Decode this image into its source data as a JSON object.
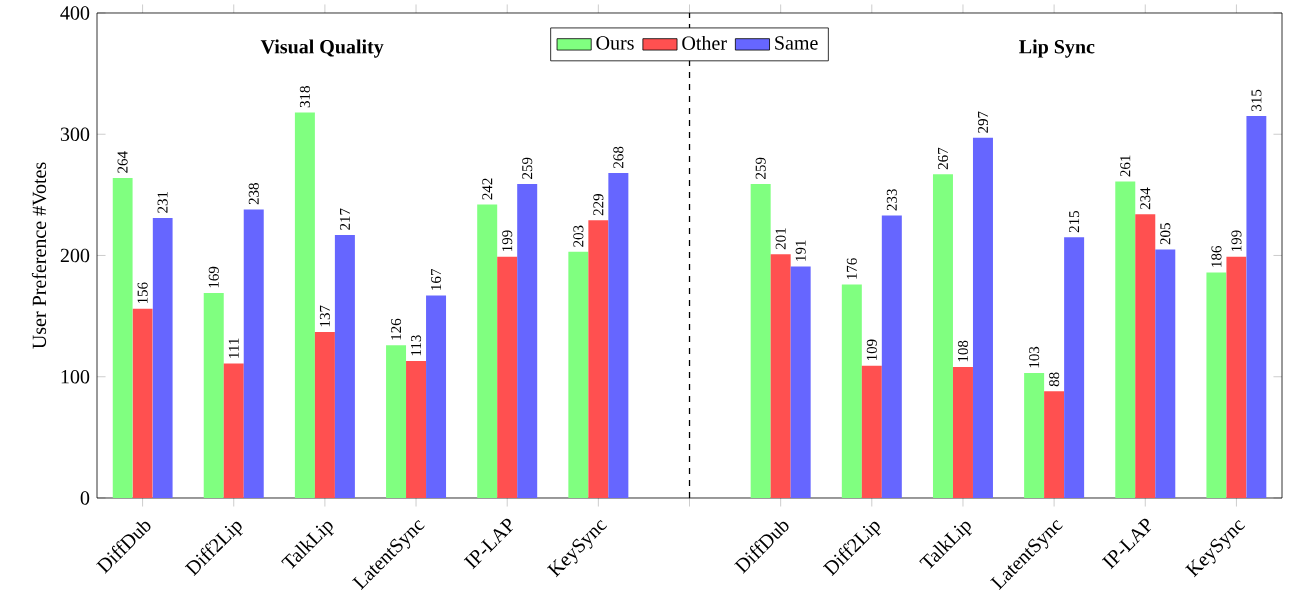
{
  "chart_data": {
    "type": "bar",
    "ylabel": "User Preference #Votes",
    "categories": [
      "DiffDub",
      "Diff2Lip",
      "TalkLip",
      "LatentSync",
      "IP-LAP",
      "KeySync",
      null,
      "DiffDub",
      "Diff2Lip",
      "TalkLip",
      "LatentSync",
      "IP-LAP",
      "KeySync"
    ],
    "series": [
      {
        "name": "Ours",
        "color": "#80ff80",
        "values": [
          264,
          169,
          318,
          126,
          242,
          203,
          null,
          259,
          176,
          267,
          103,
          261,
          186
        ]
      },
      {
        "name": "Other",
        "color": "#ff5050",
        "values": [
          156,
          111,
          137,
          113,
          199,
          229,
          null,
          201,
          109,
          108,
          88,
          234,
          199
        ]
      },
      {
        "name": "Same",
        "color": "#6666ff",
        "values": [
          231,
          238,
          217,
          167,
          259,
          268,
          null,
          191,
          233,
          297,
          215,
          205,
          315
        ]
      }
    ],
    "ylim": [
      0,
      400
    ],
    "yticks": [
      0,
      100,
      200,
      300,
      400
    ],
    "annotations": [
      "Visual Quality",
      "Lip Sync"
    ],
    "data_labels": true,
    "legend": "top"
  }
}
